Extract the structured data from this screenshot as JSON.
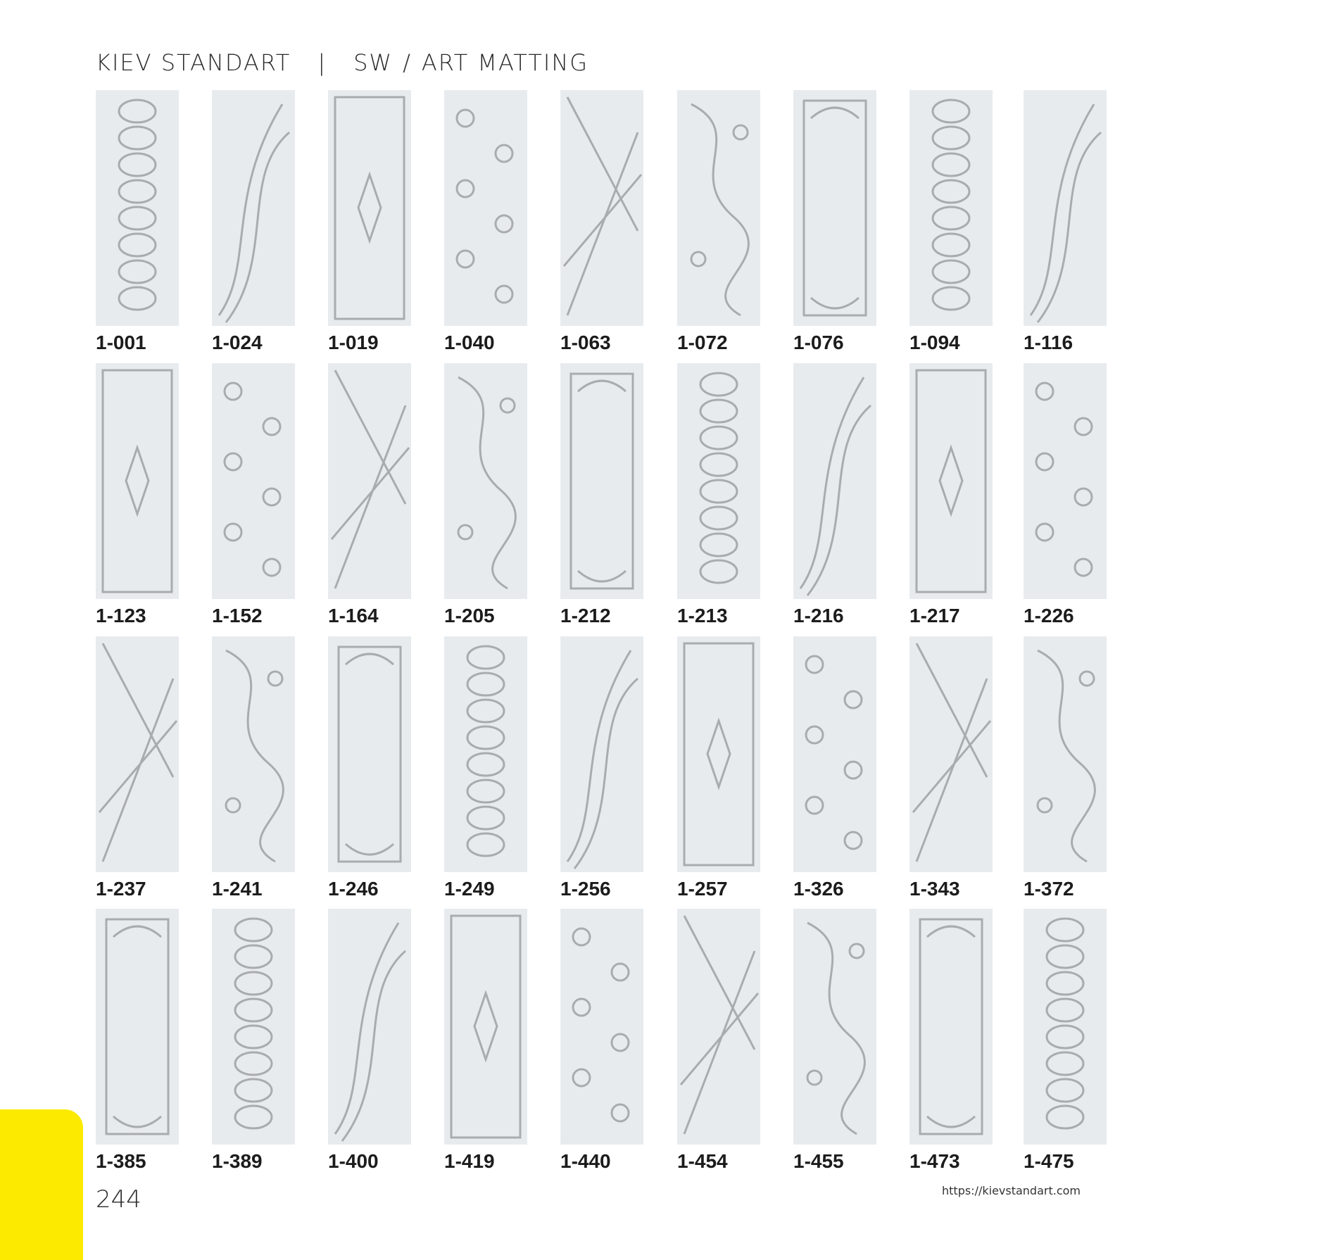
{
  "header": {
    "brand": "KIEV STANDART",
    "separator": "|",
    "category": "SW",
    "slash": "/",
    "collection": "ART MATTING"
  },
  "rows": [
    [
      "1-001",
      "1-024",
      "1-019",
      "1-040",
      "1-063",
      "1-072",
      "1-076",
      "1-094",
      "1-116"
    ],
    [
      "1-123",
      "1-152",
      "1-164",
      "1-205",
      "1-212",
      "1-213",
      "1-216",
      "1-217",
      "1-226"
    ],
    [
      "1-237",
      "1-241",
      "1-246",
      "1-249",
      "1-256",
      "1-257",
      "1-326",
      "1-343",
      "1-372"
    ],
    [
      "1-385",
      "1-389",
      "1-400",
      "1-419",
      "1-440",
      "1-454",
      "1-455",
      "1-473",
      "1-475"
    ]
  ],
  "footer": {
    "page_number": "244",
    "url": "https://kievstandart.com"
  },
  "colors": {
    "panel": "#e8ebee",
    "pattern": "#a9acae",
    "accent_yellow": "#fcea00"
  }
}
